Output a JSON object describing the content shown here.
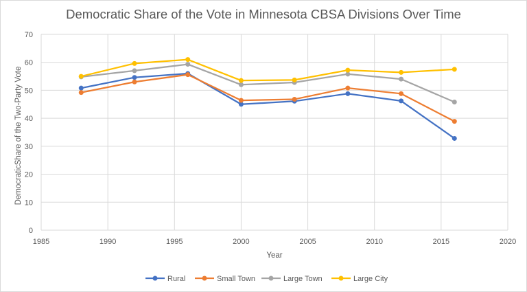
{
  "chart_data": {
    "type": "scatter",
    "title": "Democratic Share of the Vote in Minnesota CBSA Divisions Over Time",
    "xlabel": "Year",
    "ylabel": "DemocraticShare of the Two-Party Vote",
    "xlim": [
      1985,
      2020
    ],
    "ylim": [
      0,
      70
    ],
    "x_ticks": [
      1985,
      1990,
      1995,
      2000,
      2005,
      2010,
      2015,
      2020
    ],
    "y_ticks": [
      0,
      10,
      20,
      30,
      40,
      50,
      60,
      70
    ],
    "grid": true,
    "legend_position": "bottom",
    "x": [
      1988,
      1992,
      1996,
      2000,
      2004,
      2008,
      2012,
      2016
    ],
    "series": [
      {
        "name": "Rural",
        "color": "#4472C4",
        "values": [
          50.8,
          54.6,
          56.0,
          45.0,
          46.1,
          48.8,
          46.2,
          32.8
        ]
      },
      {
        "name": "Small Town",
        "color": "#ED7D31",
        "values": [
          49.2,
          53.0,
          55.6,
          46.4,
          46.8,
          50.8,
          48.8,
          38.9
        ]
      },
      {
        "name": "Large Town",
        "color": "#A5A5A5",
        "values": [
          54.8,
          57.0,
          59.3,
          52.0,
          52.8,
          55.8,
          54.0,
          45.8
        ]
      },
      {
        "name": "Large City",
        "color": "#FFC000",
        "values": [
          55.0,
          59.6,
          61.0,
          53.5,
          53.7,
          57.2,
          56.4,
          57.5
        ]
      }
    ]
  }
}
